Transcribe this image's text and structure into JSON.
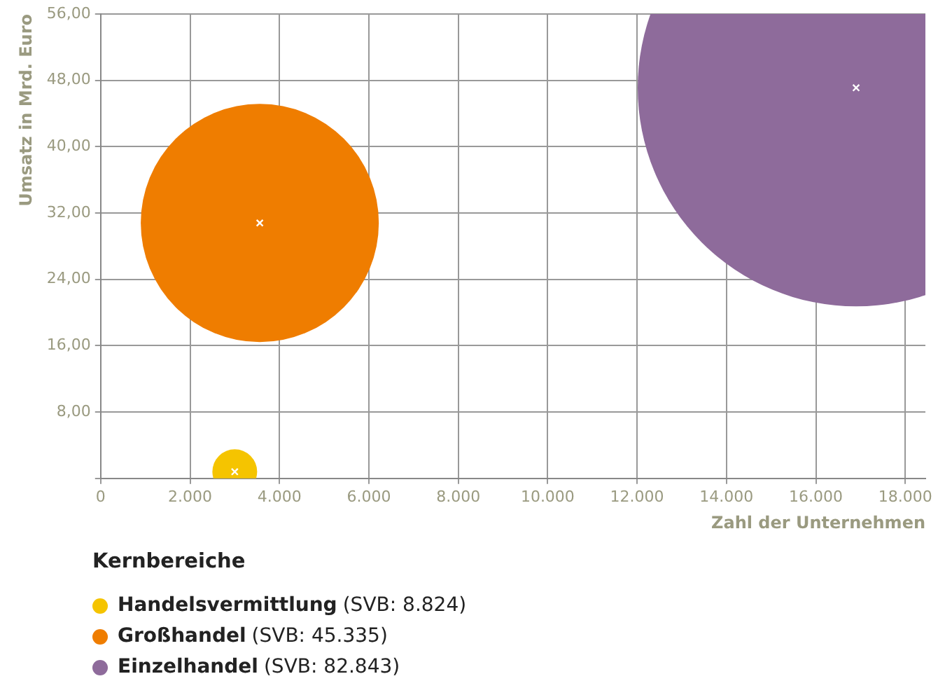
{
  "chart_data": {
    "type": "bubble",
    "xlabel": "Zahl der Unternehmen",
    "ylabel": "Umsatz in Mrd. Euro",
    "legend_title": "Kernbereiche",
    "legend": "bottom",
    "grid": true,
    "xlim": [
      0,
      18450
    ],
    "ylim": [
      0,
      56
    ],
    "xticks": [
      0,
      {
        "value": 2000,
        "label": "2.000"
      },
      {
        "value": 4000,
        "label": "4.000"
      },
      {
        "value": 6000,
        "label": "6.000"
      },
      {
        "value": 8000,
        "label": "8.000"
      },
      {
        "value": 10000,
        "label": "10.000"
      },
      {
        "value": 12000,
        "label": "12.000"
      },
      {
        "value": 14000,
        "label": "14.000"
      },
      {
        "value": 16000,
        "label": "16.000"
      },
      {
        "value": 18000,
        "label": "18.000"
      }
    ],
    "yticks": [
      {
        "value": 0,
        "label": null
      },
      {
        "value": 8,
        "label": "8,00"
      },
      {
        "value": 16,
        "label": "16,00"
      },
      {
        "value": 24,
        "label": "24,00"
      },
      {
        "value": 32,
        "label": "32,00"
      },
      {
        "value": 40,
        "label": "40,00"
      },
      {
        "value": 48,
        "label": "48,00"
      },
      {
        "value": 56,
        "label": "56,00"
      }
    ],
    "series": [
      {
        "name": "Handelsvermittlung (SVB: 8.824)",
        "color": "#f5c400",
        "x": [
          3000
        ],
        "values": [
          0.8
        ],
        "sizes": [
          0.0105
        ]
      },
      {
        "name": "Großhandel (SVB: 45.335)",
        "color": "#ef7d00",
        "x": [
          3560
        ],
        "values": [
          30.8
        ],
        "sizes": [
          0.297
        ]
      },
      {
        "name": "Einzelhandel (SVB: 82.843)",
        "color": "#8e6b9b",
        "x": [
          16900
        ],
        "values": [
          47.1
        ],
        "sizes": [
          1
        ]
      }
    ]
  }
}
